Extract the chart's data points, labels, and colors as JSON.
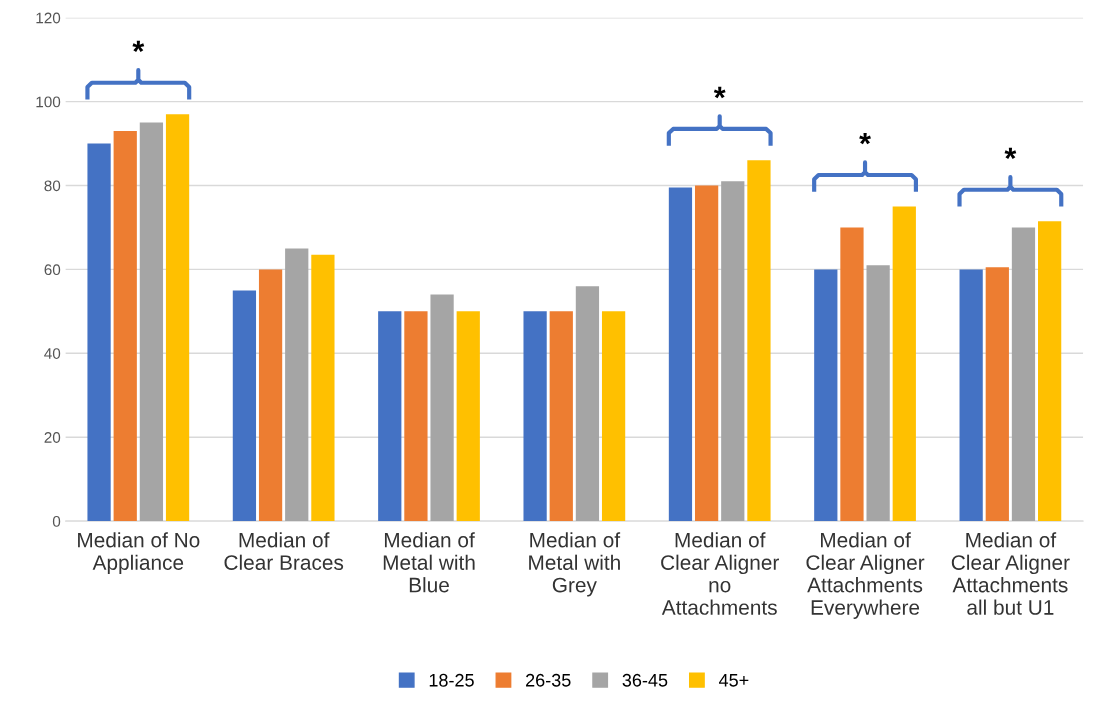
{
  "chart_data": {
    "type": "bar",
    "categories": [
      "Median of No\nAppliance",
      "Median of\nClear Braces",
      "Median of\nMetal with\nBlue",
      "Median of\nMetal with\nGrey",
      "Median of\nClear Aligner\nno\nAttachments",
      "Median of\nClear Aligner\nAttachments\nEverywhere",
      "Median of\nClear Aligner\nAttachments\nall but U1"
    ],
    "series": [
      {
        "name": "18-25",
        "color": "#4472c4",
        "values": [
          90,
          55,
          50,
          50,
          79.5,
          60,
          60
        ]
      },
      {
        "name": "26-35",
        "color": "#ed7d31",
        "values": [
          93,
          60,
          50,
          50,
          80,
          70,
          60.5
        ]
      },
      {
        "name": "36-45",
        "color": "#a5a5a5",
        "values": [
          95,
          65,
          54,
          56,
          81,
          61,
          70
        ]
      },
      {
        "name": "45+",
        "color": "#ffc000",
        "values": [
          97,
          63.5,
          50,
          50,
          86,
          75,
          71.5
        ]
      }
    ],
    "ylim": [
      0,
      120
    ],
    "yticks": [
      0,
      20,
      40,
      60,
      80,
      100,
      120
    ],
    "grid": "y",
    "legend": "bottom",
    "annotations": [
      "*",
      "*",
      "*",
      "*"
    ]
  }
}
